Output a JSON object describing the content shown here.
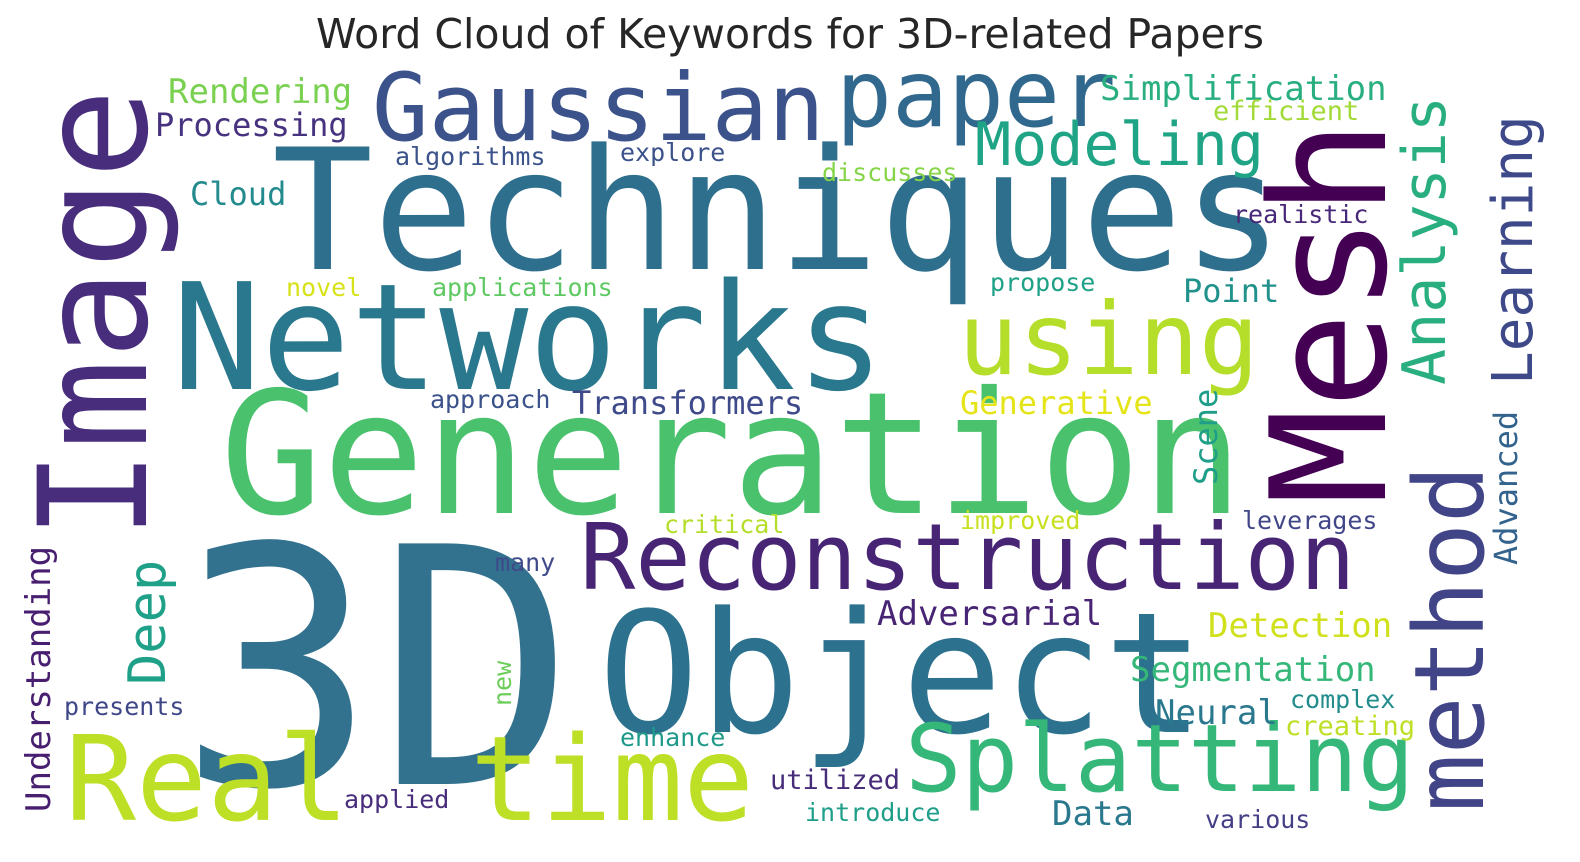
{
  "title": "Word Cloud of Keywords for 3D-related Papers",
  "words": [
    {
      "text": "3D",
      "color": "#33728e"
    },
    {
      "text": "Techniques",
      "color": "#2f6f8e"
    },
    {
      "text": "Generation",
      "color": "#4ac16d"
    },
    {
      "text": "Networks",
      "color": "#2a788e"
    },
    {
      "text": "Object",
      "color": "#2c718e"
    },
    {
      "text": "Image",
      "color": "#472d7b"
    },
    {
      "text": "Mesh",
      "color": "#440154"
    },
    {
      "text": "Real",
      "color": "#bddf26"
    },
    {
      "text": "time",
      "color": "#bddf26"
    },
    {
      "text": "Gaussian",
      "color": "#3b528b"
    },
    {
      "text": "paper",
      "color": "#31688e"
    },
    {
      "text": "using",
      "color": "#b5de2b"
    },
    {
      "text": "Reconstruction",
      "color": "#482475"
    },
    {
      "text": "Splatting",
      "color": "#35b779"
    },
    {
      "text": "method",
      "color": "#414487"
    },
    {
      "text": "Modeling",
      "color": "#20a486"
    },
    {
      "text": "Analysis",
      "color": "#29af7f"
    },
    {
      "text": "Learning",
      "color": "#3e4989"
    },
    {
      "text": "Simplification",
      "color": "#29af7f"
    },
    {
      "text": "Rendering",
      "color": "#7ad151"
    },
    {
      "text": "Processing",
      "color": "#46327e"
    },
    {
      "text": "efficient",
      "color": "#a2da37"
    },
    {
      "text": "algorithms",
      "color": "#3b528b"
    },
    {
      "text": "explore",
      "color": "#3b528b"
    },
    {
      "text": "discusses",
      "color": "#86d549"
    },
    {
      "text": "Cloud",
      "color": "#238a8d"
    },
    {
      "text": "realistic",
      "color": "#482878"
    },
    {
      "text": "novel",
      "color": "#d8e219"
    },
    {
      "text": "applications",
      "color": "#5ec962"
    },
    {
      "text": "propose",
      "color": "#1fa187"
    },
    {
      "text": "Point",
      "color": "#21918c"
    },
    {
      "text": "approach",
      "color": "#3b528b"
    },
    {
      "text": "Transformers",
      "color": "#3e4a89"
    },
    {
      "text": "Generative",
      "color": "#e5e419"
    },
    {
      "text": "Scene",
      "color": "#1f9e89"
    },
    {
      "text": "Advanced",
      "color": "#33638d"
    },
    {
      "text": "critical",
      "color": "#b5de2b"
    },
    {
      "text": "improved",
      "color": "#c8e020"
    },
    {
      "text": "leverages",
      "color": "#404688"
    },
    {
      "text": "Deep",
      "color": "#1fa088"
    },
    {
      "text": "many",
      "color": "#3e4a89"
    },
    {
      "text": "Adversarial",
      "color": "#482475"
    },
    {
      "text": "Detection",
      "color": "#d0e11c"
    },
    {
      "text": "Understanding",
      "color": "#481f70"
    },
    {
      "text": "Segmentation",
      "color": "#35b779"
    },
    {
      "text": "presents",
      "color": "#3f4788"
    },
    {
      "text": "new",
      "color": "#6ccd5a"
    },
    {
      "text": "complex",
      "color": "#228c8d"
    },
    {
      "text": "Neural",
      "color": "#2a788e"
    },
    {
      "text": "creating",
      "color": "#bddf26"
    },
    {
      "text": "enhance",
      "color": "#1f9a8a"
    },
    {
      "text": "utilized",
      "color": "#472c7a"
    },
    {
      "text": "applied",
      "color": "#472d7b"
    },
    {
      "text": "introduce",
      "color": "#1f9e89"
    },
    {
      "text": "Data",
      "color": "#2a788e"
    },
    {
      "text": "various",
      "color": "#433e85"
    }
  ]
}
